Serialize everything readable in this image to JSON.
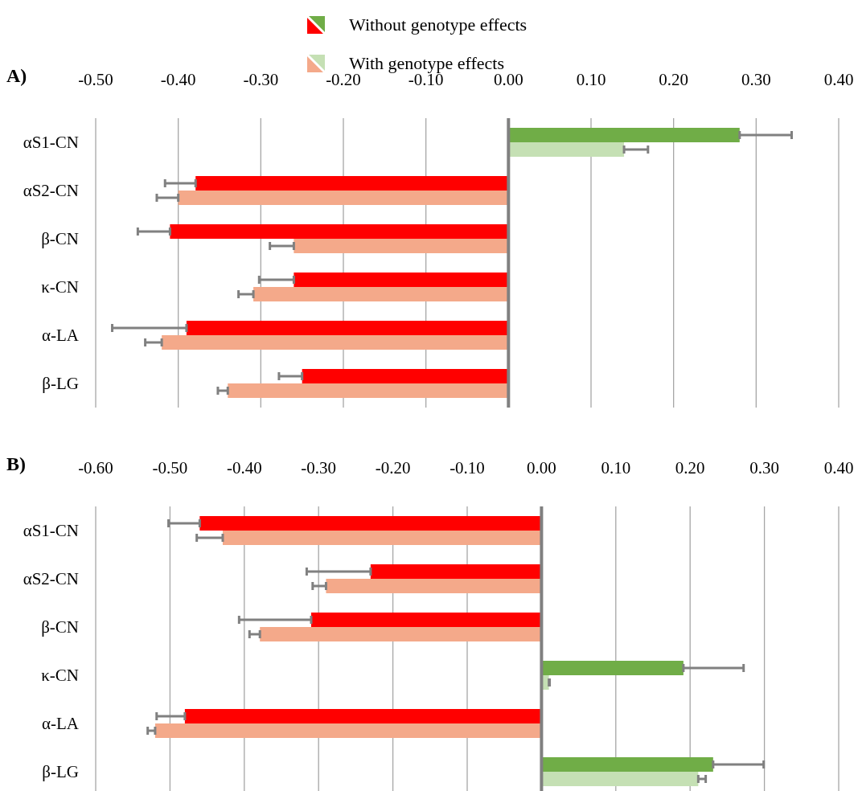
{
  "chart_data": [
    {
      "type": "bar",
      "title": "A)",
      "orientation": "horizontal",
      "categories": [
        "αS1-CN",
        "αS2-CN",
        "β-CN",
        "κ-CN",
        "α-LA",
        "β-LG"
      ],
      "series": [
        {
          "name": "Without genotype effects",
          "colors": [
            "#70ad47",
            "#ff0000",
            "#ff0000",
            "#ff0000",
            "#ff0000",
            "#ff0000"
          ],
          "values": [
            0.28,
            -0.379,
            -0.41,
            -0.26,
            -0.39,
            -0.25
          ],
          "errors": [
            [
              0.28,
              0.343
            ],
            [
              -0.416,
              -0.379
            ],
            [
              -0.449,
              -0.41
            ],
            [
              -0.302,
              -0.26
            ],
            [
              -0.48,
              -0.39
            ],
            [
              -0.278,
              -0.25
            ]
          ]
        },
        {
          "name": "With genotype effects",
          "colors": [
            "#c5e0b4",
            "#f4a98a",
            "#f4a98a",
            "#f4a98a",
            "#f4a98a",
            "#f4a98a"
          ],
          "values": [
            0.14,
            -0.4,
            -0.26,
            -0.309,
            -0.42,
            -0.34
          ],
          "errors": [
            [
              0.14,
              0.169
            ],
            [
              -0.426,
              -0.4
            ],
            [
              -0.289,
              -0.26
            ],
            [
              -0.327,
              -0.309
            ],
            [
              -0.44,
              -0.42
            ],
            [
              -0.352,
              -0.34
            ]
          ]
        }
      ],
      "xlim": [
        -0.5,
        0.4
      ],
      "xticks": [
        {
          "value": -0.5,
          "label": "-0.50"
        },
        {
          "value": -0.4,
          "label": "-0.40"
        },
        {
          "value": -0.3,
          "label": "-0.30"
        },
        {
          "value": -0.2,
          "label": "-0.20"
        },
        {
          "value": -0.1,
          "label": "-0.10"
        },
        {
          "value": 0,
          "label": "0.00"
        },
        {
          "value": 0.1,
          "label": "0.10"
        },
        {
          "value": 0.2,
          "label": "0.20"
        },
        {
          "value": 0.3,
          "label": "0.30"
        },
        {
          "value": 0.4,
          "label": "0.40"
        }
      ],
      "grid": "x",
      "legend": "top"
    },
    {
      "type": "bar",
      "title": "B)",
      "orientation": "horizontal",
      "categories": [
        "αS1-CN",
        "αS2-CN",
        "β-CN",
        "κ-CN",
        "α-LA",
        "β-LG"
      ],
      "series": [
        {
          "colors": [
            "#ff0000",
            "#ff0000",
            "#ff0000",
            "#70ad47",
            "#ff0000",
            "#70ad47"
          ],
          "values": [
            -0.46,
            -0.23,
            -0.31,
            0.191,
            -0.48,
            0.231
          ],
          "errors": [
            [
              -0.502,
              -0.46
            ],
            [
              -0.316,
              -0.23
            ],
            [
              -0.407,
              -0.31
            ],
            [
              0.191,
              0.272
            ],
            [
              -0.518,
              -0.48
            ],
            [
              0.231,
              0.299
            ]
          ]
        },
        {
          "colors": [
            "#f4a98a",
            "#f4a98a",
            "#f4a98a",
            "#c5e0b4",
            "#f4a98a",
            "#c5e0b4"
          ],
          "values": [
            -0.429,
            -0.29,
            -0.379,
            0.01,
            -0.52,
            0.211
          ],
          "errors": [
            [
              -0.464,
              -0.429
            ],
            [
              -0.308,
              -0.29
            ],
            [
              -0.393,
              -0.379
            ],
            [
              0.01,
              0.011
            ],
            [
              -0.53,
              -0.52
            ],
            [
              0.211,
              0.221
            ]
          ]
        }
      ],
      "xlim": [
        -0.6,
        0.4
      ],
      "xticks": [
        {
          "value": -0.6,
          "label": "-0.60"
        },
        {
          "value": -0.5,
          "label": "-0.50"
        },
        {
          "value": -0.4,
          "label": "-0.40"
        },
        {
          "value": -0.3,
          "label": "-0.30"
        },
        {
          "value": -0.2,
          "label": "-0.20"
        },
        {
          "value": -0.1,
          "label": "-0.10"
        },
        {
          "value": 0,
          "label": "0.00"
        },
        {
          "value": 0.1,
          "label": "0.10"
        },
        {
          "value": 0.2,
          "label": "0.20"
        },
        {
          "value": 0.3,
          "label": "0.30"
        },
        {
          "value": 0.4,
          "label": "0.40"
        }
      ],
      "grid": "x"
    }
  ]
}
